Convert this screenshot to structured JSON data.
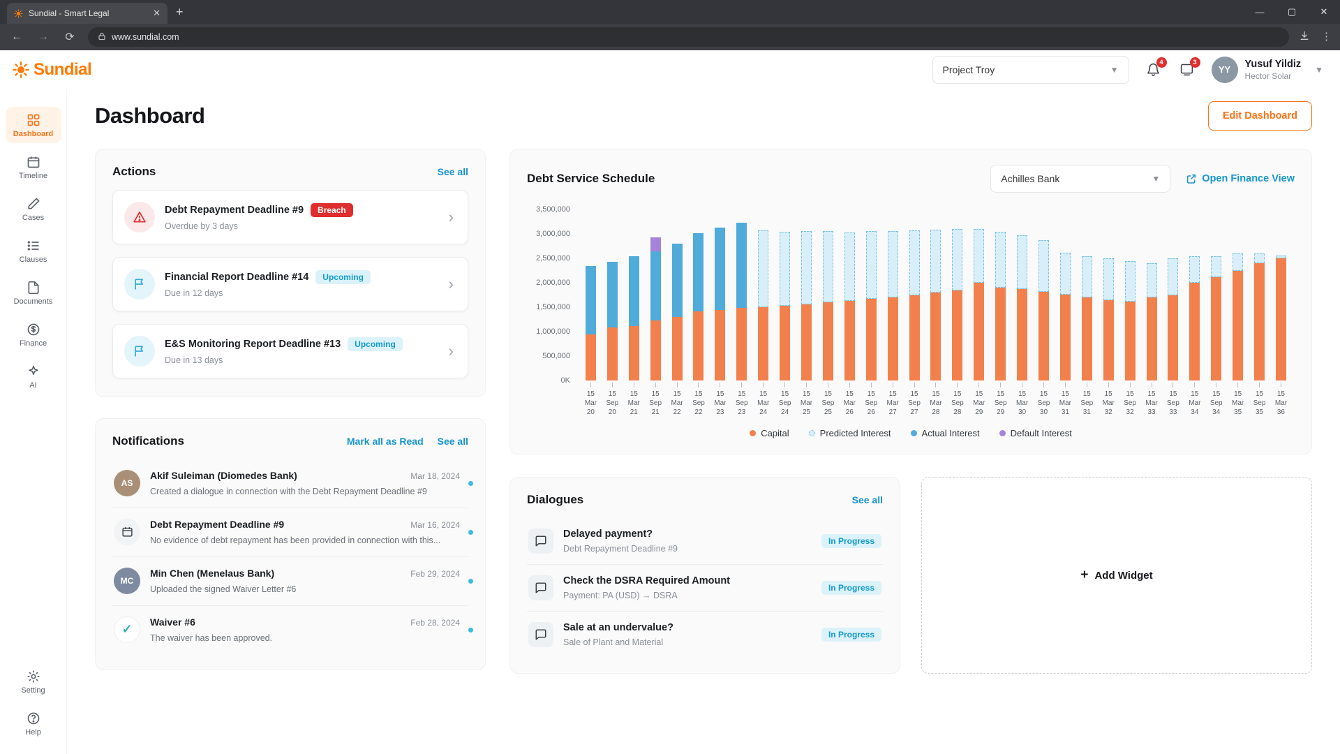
{
  "browser": {
    "tab_title": "Sundial - Smart Legal",
    "url": "www.sundial.com"
  },
  "header": {
    "logo_text": "Sundial",
    "project_select": "Project Troy",
    "notif_count": "4",
    "message_count": "3",
    "user_name": "Yusuf Yildiz",
    "user_org": "Hector Solar",
    "avatar_initials": "YY"
  },
  "sidebar": {
    "items": [
      {
        "key": "dashboard",
        "label": "Dashboard",
        "icon": "grid",
        "active": true
      },
      {
        "key": "timeline",
        "label": "Timeline",
        "icon": "calendar",
        "active": false
      },
      {
        "key": "cases",
        "label": "Cases",
        "icon": "pen",
        "active": false
      },
      {
        "key": "clauses",
        "label": "Clauses",
        "icon": "list",
        "active": false
      },
      {
        "key": "documents",
        "label": "Documents",
        "icon": "file",
        "active": false
      },
      {
        "key": "finance",
        "label": "Finance",
        "icon": "dollar",
        "active": false
      },
      {
        "key": "ai",
        "label": "AI",
        "icon": "sparkle",
        "active": false
      }
    ],
    "footer_items": [
      {
        "key": "setting",
        "label": "Setting",
        "icon": "gear",
        "active": false
      },
      {
        "key": "help",
        "label": "Help",
        "icon": "help",
        "active": false
      }
    ]
  },
  "page": {
    "title": "Dashboard",
    "edit_button": "Edit Dashboard"
  },
  "actions": {
    "title": "Actions",
    "see_all": "See all",
    "items": [
      {
        "title": "Debt Repayment Deadline #9",
        "badge": "Breach",
        "badge_type": "breach",
        "subtitle": "Overdue by 3 days",
        "icon": "alert"
      },
      {
        "title": "Financial Report Deadline #14",
        "badge": "Upcoming",
        "badge_type": "upcoming",
        "subtitle": "Due in 12 days",
        "icon": "flag"
      },
      {
        "title": "E&S Monitoring Report Deadline #13",
        "badge": "Upcoming",
        "badge_type": "upcoming",
        "subtitle": "Due in 13 days",
        "icon": "flag"
      }
    ]
  },
  "notifications": {
    "title": "Notifications",
    "mark_all": "Mark all as Read",
    "see_all": "See all",
    "items": [
      {
        "title": "Akif Suleiman (Diomedes Bank)",
        "date": "Mar 18, 2024",
        "text": "Created a dialogue in connection with the Debt Repayment Deadline #9",
        "avatar": "person1",
        "initials": "AS",
        "unread": true
      },
      {
        "title": "Debt Repayment Deadline #9",
        "date": "Mar 16, 2024",
        "text": "No evidence of debt repayment has been provided in connection with this...",
        "avatar": "calendar",
        "initials": "",
        "unread": true
      },
      {
        "title": "Min Chen (Menelaus Bank)",
        "date": "Feb 29, 2024",
        "text": "Uploaded the signed Waiver Letter #6",
        "avatar": "person2",
        "initials": "MC",
        "unread": true
      },
      {
        "title": "Waiver #6",
        "date": "Feb 28, 2024",
        "text": "The waiver has been approved.",
        "avatar": "check",
        "initials": "",
        "unread": true
      }
    ]
  },
  "debt_schedule": {
    "title": "Debt Service Schedule",
    "bank_select": "Achilles Bank",
    "open_finance": "Open Finance View"
  },
  "chart_data": {
    "type": "bar",
    "stacked": true,
    "title": "Debt Service Schedule",
    "ylim": [
      0,
      3500000
    ],
    "y_ticks": [
      "3,500,000",
      "3,000,000",
      "2,500,000",
      "2,000,000",
      "1,500,000",
      "1,000,000",
      "500,000",
      "0K"
    ],
    "x": [
      "15 Mar 20",
      "15 Sep 20",
      "15 Mar 21",
      "15 Sep 21",
      "15 Mar 22",
      "15 Sep 22",
      "15 Mar 23",
      "15 Sep 23",
      "15 Mar 24",
      "15 Sep 24",
      "15 Mar 25",
      "15 Sep 25",
      "15 Mar 26",
      "15 Sep 26",
      "15 Mar 27",
      "15 Sep 27",
      "15 Mar 28",
      "15 Sep 28",
      "15 Mar 29",
      "15 Sep 29",
      "15 Mar 30",
      "15 Sep 30",
      "15 Mar 31",
      "15 Sep 31",
      "15 Mar 32",
      "15 Sep 32",
      "15 Mar 33",
      "15 Sep 33",
      "15 Mar 34",
      "15 Sep 34",
      "15 Mar 35",
      "15 Sep 35",
      "15 Mar 36"
    ],
    "series": [
      {
        "name": "Capital",
        "color": "#F2804C",
        "values": [
          950000,
          1080000,
          1120000,
          1230000,
          1300000,
          1420000,
          1450000,
          1480000,
          1500000,
          1530000,
          1560000,
          1600000,
          1630000,
          1670000,
          1700000,
          1750000,
          1800000,
          1850000,
          2000000,
          1900000,
          1870000,
          1820000,
          1760000,
          1700000,
          1650000,
          1620000,
          1700000,
          1750000,
          2000000,
          2120000,
          2250000,
          2400000,
          2500000
        ]
      },
      {
        "name": "Actual Interest",
        "color": "#4FABD9",
        "values": [
          1400000,
          1350000,
          1430000,
          1420000,
          1500000,
          1600000,
          1680000,
          1750000,
          0,
          0,
          0,
          0,
          0,
          0,
          0,
          0,
          0,
          0,
          0,
          0,
          0,
          0,
          0,
          0,
          0,
          0,
          0,
          0,
          0,
          0,
          0,
          0,
          0
        ]
      },
      {
        "name": "Predicted Interest",
        "color": "#79C2E2",
        "fill": "#D8EEF8",
        "style": "dashed",
        "values": [
          0,
          0,
          0,
          0,
          0,
          0,
          0,
          0,
          1570000,
          1520000,
          1500000,
          1460000,
          1400000,
          1390000,
          1360000,
          1320000,
          1280000,
          1250000,
          1100000,
          1150000,
          1100000,
          1050000,
          850000,
          850000,
          850000,
          830000,
          700000,
          750000,
          550000,
          430000,
          350000,
          200000,
          60000
        ]
      },
      {
        "name": "Default Interest",
        "color": "#A583D9",
        "values": [
          0,
          0,
          0,
          280000,
          0,
          0,
          0,
          0,
          0,
          0,
          0,
          0,
          0,
          0,
          0,
          0,
          0,
          0,
          0,
          0,
          0,
          0,
          0,
          0,
          0,
          0,
          0,
          0,
          0,
          0,
          0,
          0,
          0
        ]
      }
    ],
    "stack_order": [
      "Capital",
      "Actual Interest",
      "Predicted Interest",
      "Default Interest"
    ],
    "legend": [
      "Capital",
      "Predicted Interest",
      "Actual Interest",
      "Default Interest"
    ],
    "legend_position": "bottom",
    "grid": false
  },
  "dialogues": {
    "title": "Dialogues",
    "see_all": "See all",
    "items": [
      {
        "title": "Delayed payment?",
        "subtitle": "Debt Repayment Deadline #9",
        "status": "In Progress"
      },
      {
        "title": "Check the DSRA Required Amount",
        "subtitle": "Payment: PA (USD) → DSRA",
        "status": "In Progress"
      },
      {
        "title": "Sale at an undervalue?",
        "subtitle": "Sale of Plant and Material",
        "status": "In Progress"
      }
    ]
  },
  "add_widget": {
    "label": "Add Widget"
  }
}
